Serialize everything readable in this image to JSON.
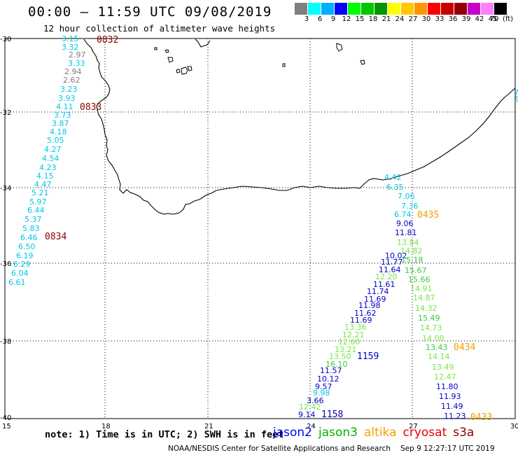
{
  "header": {
    "title": "00:00 – 11:59 UTC 09/08/2019",
    "subtitle": "12 hour collection of altimeter wave heights"
  },
  "colorbar": {
    "unit": "(ft)",
    "colors": [
      "#7f7f7f",
      "#00ffff",
      "#00b0ff",
      "#0000ff",
      "#00ff00",
      "#00c800",
      "#009600",
      "#ffff00",
      "#ffc800",
      "#ff9600",
      "#ff0000",
      "#c80000",
      "#960000",
      "#c800c8",
      "#ff80ff",
      "#000000"
    ],
    "labels": [
      "3",
      "6",
      "9",
      "12",
      "15",
      "18",
      "21",
      "24",
      "27",
      "30",
      "33",
      "36",
      "39",
      "42",
      "45",
      "70"
    ]
  },
  "axes": {
    "lon_labels": [
      "15",
      "18",
      "21",
      "24",
      "27",
      "30"
    ],
    "lat_labels": [
      "-30",
      "-32",
      "-34",
      "-36",
      "-38",
      "-40"
    ]
  },
  "tracks": {
    "colors": {
      "cyan": "#00c8e6",
      "gray": "#7f7f7f",
      "blue": "#0000c8",
      "green": "#3cc83c",
      "lgreen": "#78e646",
      "darkred": "#8b0000",
      "orange": "#f0a000"
    },
    "west_values": [
      {
        "v": "3.15",
        "c": "cyan"
      },
      {
        "v": "3.32",
        "c": "cyan"
      },
      {
        "v": "2.97",
        "c": "gray"
      },
      {
        "v": "3.33",
        "c": "cyan"
      },
      {
        "v": "2.94",
        "c": "gray"
      },
      {
        "v": "2.62",
        "c": "gray"
      },
      {
        "v": "3.23",
        "c": "cyan"
      },
      {
        "v": "3.93",
        "c": "cyan"
      },
      {
        "v": "4.11",
        "c": "cyan"
      },
      {
        "v": "3.73",
        "c": "cyan"
      },
      {
        "v": "3.87",
        "c": "cyan"
      },
      {
        "v": "4.18",
        "c": "cyan"
      },
      {
        "v": "5.05",
        "c": "cyan"
      },
      {
        "v": "4.27",
        "c": "cyan"
      },
      {
        "v": "4.54",
        "c": "cyan"
      },
      {
        "v": "4.23",
        "c": "cyan"
      },
      {
        "v": "4.15",
        "c": "cyan"
      },
      {
        "v": "4.47",
        "c": "cyan"
      },
      {
        "v": "5.21",
        "c": "cyan"
      },
      {
        "v": "5.97",
        "c": "cyan"
      },
      {
        "v": "6.44",
        "c": "cyan"
      },
      {
        "v": "5.37",
        "c": "cyan"
      },
      {
        "v": "5.83",
        "c": "cyan"
      },
      {
        "v": "6.46",
        "c": "cyan"
      },
      {
        "v": "6.50",
        "c": "cyan"
      },
      {
        "v": "6.19",
        "c": "cyan"
      },
      {
        "v": "6.29",
        "c": "cyan"
      },
      {
        "v": "6.04",
        "c": "cyan"
      },
      {
        "v": "6.61",
        "c": "cyan"
      }
    ],
    "times": {
      "t0832": "0832",
      "t0833": "0833",
      "t0834": "0834",
      "t0435": "0435",
      "t0434": "0434",
      "t0433": "0433",
      "t1159": "1159",
      "t1158": "1158"
    },
    "east_top": [
      {
        "v": "4.42",
        "c": "cyan"
      },
      {
        "v": "6.35",
        "c": "cyan"
      },
      {
        "v": "7.06",
        "c": "cyan"
      },
      {
        "v": "7.36",
        "c": "cyan"
      },
      {
        "v": "6.74",
        "c": "cyan"
      },
      {
        "v": "9.06",
        "c": "blue"
      },
      {
        "v": "11.81",
        "c": "blue"
      },
      {
        "v": "13.84",
        "c": "lgreen"
      },
      {
        "v": "14.82",
        "c": "lgreen"
      },
      {
        "v": "10.02",
        "c": "blue"
      },
      {
        "v": "15.18",
        "c": "green"
      },
      {
        "v": "11.77",
        "c": "blue"
      },
      {
        "v": "11.64",
        "c": "blue"
      },
      {
        "v": "15.67",
        "c": "green"
      },
      {
        "v": "12.20",
        "c": "lgreen"
      },
      {
        "v": "15.66",
        "c": "green"
      },
      {
        "v": "11.61",
        "c": "blue"
      },
      {
        "v": "14.91",
        "c": "lgreen"
      },
      {
        "v": "11.74",
        "c": "blue"
      },
      {
        "v": "14.87",
        "c": "lgreen"
      },
      {
        "v": "11.69",
        "c": "blue"
      },
      {
        "v": "11.98",
        "c": "blue"
      },
      {
        "v": "14.32",
        "c": "lgreen"
      },
      {
        "v": "11.62",
        "c": "blue"
      },
      {
        "v": "15.49",
        "c": "green"
      },
      {
        "v": "11.69",
        "c": "blue"
      },
      {
        "v": "13.36",
        "c": "lgreen"
      },
      {
        "v": "14.73",
        "c": "lgreen"
      },
      {
        "v": "12.21",
        "c": "lgreen"
      },
      {
        "v": "14.00",
        "c": "lgreen"
      },
      {
        "v": "12.60",
        "c": "lgreen"
      },
      {
        "v": "13.43",
        "c": "green"
      },
      {
        "v": "13.21",
        "c": "lgreen"
      },
      {
        "v": "14.14",
        "c": "lgreen"
      },
      {
        "v": "13.50",
        "c": "lgreen"
      },
      {
        "v": "16.10",
        "c": "green"
      },
      {
        "v": "13.49",
        "c": "lgreen"
      },
      {
        "v": "11.57",
        "c": "blue"
      },
      {
        "v": "12.47",
        "c": "lgreen"
      },
      {
        "v": "10.12",
        "c": "blue"
      },
      {
        "v": "9.57",
        "c": "blue"
      },
      {
        "v": "11.80",
        "c": "blue"
      },
      {
        "v": "9.98",
        "c": "cyan"
      },
      {
        "v": "11.93",
        "c": "blue"
      },
      {
        "v": "3.66",
        "c": "blue"
      },
      {
        "v": "12.42",
        "c": "lgreen"
      },
      {
        "v": "11.49",
        "c": "blue"
      },
      {
        "v": "9.14",
        "c": "blue"
      },
      {
        "v": "11.23",
        "c": "blue"
      },
      {
        "v": "7.",
        "c": "cyan"
      },
      {
        "v": "9",
        "c": "cyan"
      }
    ]
  },
  "note": "note: 1) Time is in UTC; 2) SWH is in feet",
  "satellites": [
    {
      "name": "jason2",
      "color": "#0000ff"
    },
    {
      "name": "jason3",
      "color": "#00b400"
    },
    {
      "name": "altika",
      "color": "#f0a000"
    },
    {
      "name": "cryosat",
      "color": "#e60000"
    },
    {
      "name": "s3a",
      "color": "#8b0000"
    }
  ],
  "footer": {
    "org": "NOAA/NESDIS Center for Satellite Applications and Research",
    "timestamp": "Sep  9 12:27:17 UTC 2019"
  }
}
